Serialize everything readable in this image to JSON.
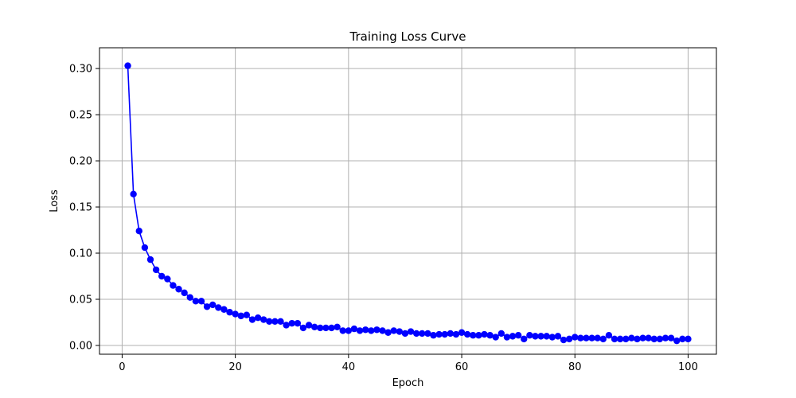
{
  "chart_data": {
    "type": "line",
    "title": "Training Loss Curve",
    "xlabel": "Epoch",
    "ylabel": "Loss",
    "xlim": [
      -4,
      105
    ],
    "ylim": [
      -0.0095,
      0.3225
    ],
    "x_ticks": [
      0,
      20,
      40,
      60,
      80,
      100
    ],
    "x_tick_labels": [
      "0",
      "20",
      "40",
      "60",
      "80",
      "100"
    ],
    "y_ticks": [
      0.0,
      0.05,
      0.1,
      0.15,
      0.2,
      0.25,
      0.3
    ],
    "y_tick_labels": [
      "0.00",
      "0.05",
      "0.10",
      "0.15",
      "0.20",
      "0.25",
      "0.30"
    ],
    "grid": true,
    "legend": "none",
    "colors": {
      "series": "#0000ff",
      "grid": "#b0b0b0",
      "axes": "#000000"
    },
    "marker": "circle",
    "x": [
      1,
      2,
      3,
      4,
      5,
      6,
      7,
      8,
      9,
      10,
      11,
      12,
      13,
      14,
      15,
      16,
      17,
      18,
      19,
      20,
      21,
      22,
      23,
      24,
      25,
      26,
      27,
      28,
      29,
      30,
      31,
      32,
      33,
      34,
      35,
      36,
      37,
      38,
      39,
      40,
      41,
      42,
      43,
      44,
      45,
      46,
      47,
      48,
      49,
      50,
      51,
      52,
      53,
      54,
      55,
      56,
      57,
      58,
      59,
      60,
      61,
      62,
      63,
      64,
      65,
      66,
      67,
      68,
      69,
      70,
      71,
      72,
      73,
      74,
      75,
      76,
      77,
      78,
      79,
      80,
      81,
      82,
      83,
      84,
      85,
      86,
      87,
      88,
      89,
      90,
      91,
      92,
      93,
      94,
      95,
      96,
      97,
      98,
      99,
      100
    ],
    "series": [
      {
        "values": [
          0.303,
          0.164,
          0.124,
          0.106,
          0.093,
          0.082,
          0.075,
          0.072,
          0.065,
          0.061,
          0.057,
          0.052,
          0.048,
          0.048,
          0.042,
          0.044,
          0.041,
          0.039,
          0.036,
          0.034,
          0.032,
          0.033,
          0.028,
          0.03,
          0.028,
          0.026,
          0.026,
          0.026,
          0.022,
          0.024,
          0.024,
          0.019,
          0.022,
          0.02,
          0.019,
          0.019,
          0.019,
          0.02,
          0.016,
          0.016,
          0.018,
          0.016,
          0.017,
          0.016,
          0.017,
          0.016,
          0.014,
          0.016,
          0.015,
          0.013,
          0.015,
          0.013,
          0.013,
          0.013,
          0.011,
          0.012,
          0.012,
          0.013,
          0.012,
          0.014,
          0.012,
          0.011,
          0.011,
          0.012,
          0.011,
          0.009,
          0.013,
          0.009,
          0.01,
          0.011,
          0.007,
          0.011,
          0.01,
          0.01,
          0.01,
          0.009,
          0.01,
          0.006,
          0.007,
          0.009,
          0.008,
          0.008,
          0.008,
          0.008,
          0.007,
          0.011,
          0.007,
          0.007,
          0.007,
          0.008,
          0.007,
          0.008,
          0.008,
          0.007,
          0.007,
          0.008,
          0.008,
          0.005,
          0.007,
          0.007
        ]
      }
    ]
  }
}
